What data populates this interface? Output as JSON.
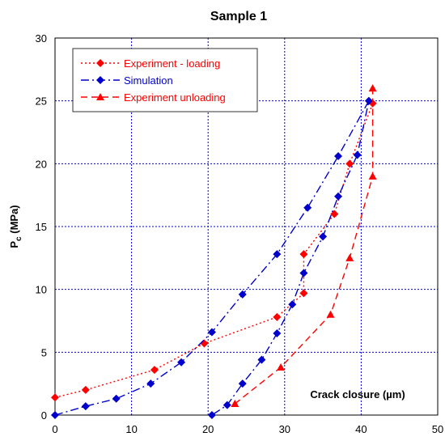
{
  "chart_data": {
    "type": "scatter",
    "title": "Sample 1",
    "ylabel": {
      "main": "P",
      "sub": "c",
      "unit": " (MPa)"
    },
    "xlabel": "Crack closure (µm)",
    "xlim": [
      0,
      50
    ],
    "ylim": [
      0,
      30
    ],
    "xticks": [
      0,
      10,
      20,
      30,
      40,
      50
    ],
    "yticks": [
      0,
      5,
      10,
      15,
      20,
      25,
      30
    ],
    "grid": true,
    "legend_position": "top-left",
    "series": [
      {
        "name": "Experiment - loading",
        "color": "#ff0000",
        "marker": "diamond",
        "line": "dotted",
        "points": [
          [
            0,
            1.4
          ],
          [
            4,
            2.0
          ],
          [
            13,
            3.6
          ],
          [
            19.5,
            5.7
          ],
          [
            29,
            7.8
          ],
          [
            32.5,
            9.7
          ],
          [
            32.5,
            12.8
          ],
          [
            36.5,
            16.0
          ],
          [
            38.5,
            20.0
          ],
          [
            41.5,
            24.8
          ]
        ]
      },
      {
        "name": "Simulation",
        "color": "#0000cc",
        "marker": "diamond",
        "line": "dash-dot",
        "points": [
          [
            0,
            0
          ],
          [
            4,
            0.7
          ],
          [
            8,
            1.3
          ],
          [
            12.5,
            2.5
          ],
          [
            16.5,
            4.2
          ],
          [
            20.5,
            6.6
          ],
          [
            24.5,
            9.6
          ],
          [
            29,
            12.8
          ],
          [
            33,
            16.5
          ],
          [
            37,
            20.6
          ],
          [
            41,
            25.0
          ],
          [
            39.5,
            20.7
          ],
          [
            37,
            17.4
          ],
          [
            35,
            14.2
          ],
          [
            32.5,
            11.3
          ],
          [
            31,
            8.8
          ],
          [
            29,
            6.5
          ],
          [
            27,
            4.4
          ],
          [
            24.5,
            2.5
          ],
          [
            22.5,
            0.8
          ],
          [
            20.5,
            0
          ]
        ]
      },
      {
        "name": "Experiment unloading",
        "color": "#ff0000",
        "marker": "triangle",
        "line": "dashed",
        "points": [
          [
            23.5,
            0.9
          ],
          [
            29.5,
            3.8
          ],
          [
            36,
            8.0
          ],
          [
            38.5,
            12.5
          ],
          [
            41.5,
            19.0
          ],
          [
            41.5,
            26.0
          ]
        ]
      }
    ]
  }
}
